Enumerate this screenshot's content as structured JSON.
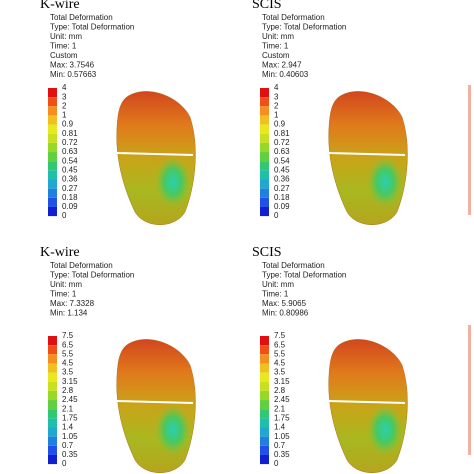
{
  "panels": [
    {
      "title": "K-wire",
      "info": [
        "Total Deformation",
        "Type: Total Deformation",
        "Unit: mm",
        "Time: 1",
        "Custom",
        "Max: 3.7546",
        "Min: 0.57663"
      ],
      "legend": [
        "4",
        "3",
        "2",
        "1",
        "0.9",
        "0.81",
        "0.72",
        "0.63",
        "0.54",
        "0.45",
        "0.36",
        "0.27",
        "0.18",
        "0.09",
        "0"
      ]
    },
    {
      "title": "SCIS",
      "info": [
        "Total Deformation",
        "Type: Total Deformation",
        "Unit: mm",
        "Time: 1",
        "Custom",
        "Max: 2.947",
        "Min: 0.40603"
      ],
      "legend": [
        "4",
        "3",
        "2",
        "1",
        "0.9",
        "0.81",
        "0.72",
        "0.63",
        "0.54",
        "0.45",
        "0.36",
        "0.27",
        "0.18",
        "0.09",
        "0"
      ]
    },
    {
      "title": "K-wire",
      "info": [
        "Total Deformation",
        "Type: Total Deformation",
        "Unit: mm",
        "Time: 1",
        "Max: 7.3328",
        "Min: 1.134"
      ],
      "legend": [
        "7.5",
        "6.5",
        "5.5",
        "4.5",
        "3.5",
        "3.15",
        "2.8",
        "2.45",
        "2.1",
        "1.75",
        "1.4",
        "1.05",
        "0.7",
        "0.35",
        "0"
      ]
    },
    {
      "title": "SCIS",
      "info": [
        "Total Deformation",
        "Type: Total Deformation",
        "Unit: mm",
        "Time: 1",
        "Max: 5.9065",
        "Min: 0.80986"
      ],
      "legend": [
        "7.5",
        "6.5",
        "5.5",
        "4.5",
        "3.5",
        "3.15",
        "2.8",
        "2.45",
        "2.1",
        "1.75",
        "1.4",
        "1.05",
        "0.7",
        "0.35",
        "0"
      ]
    }
  ]
}
